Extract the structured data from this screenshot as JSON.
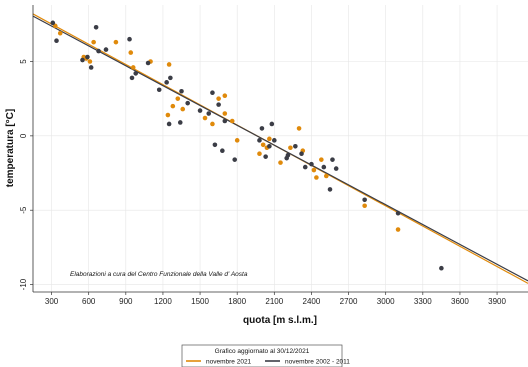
{
  "chart_data": {
    "type": "scatter",
    "xlabel": "quota [m s.l.m.]",
    "ylabel": "temperatura [°C]",
    "xlim": [
      150,
      4150
    ],
    "ylim": [
      -10.5,
      8.8
    ],
    "x_ticks": [
      300,
      600,
      900,
      1200,
      1500,
      1800,
      2100,
      2400,
      2700,
      3000,
      3300,
      3600,
      3900
    ],
    "y_ticks": [
      -10,
      -5,
      0,
      5
    ],
    "grid": true,
    "annotation": "Elaborazioni a cura del Centro Funzionale della Valle d' Aosta",
    "legend": {
      "title": "Grafico aggiornato al 30/12/2021",
      "placement": "bottom-center"
    },
    "series": [
      {
        "name": "novembre 2021",
        "color": "#e08a0b",
        "points": [
          [
            330,
            7.4
          ],
          [
            370,
            6.9
          ],
          [
            560,
            5.3
          ],
          [
            580,
            5.2
          ],
          [
            610,
            5.0
          ],
          [
            640,
            6.3
          ],
          [
            820,
            6.3
          ],
          [
            940,
            5.6
          ],
          [
            960,
            4.6
          ],
          [
            1100,
            5.0
          ],
          [
            1250,
            4.8
          ],
          [
            1240,
            1.4
          ],
          [
            1280,
            2.0
          ],
          [
            1320,
            2.5
          ],
          [
            1360,
            1.8
          ],
          [
            1540,
            1.2
          ],
          [
            1600,
            0.8
          ],
          [
            1650,
            2.5
          ],
          [
            1700,
            2.7
          ],
          [
            1700,
            1.5
          ],
          [
            1760,
            1.0
          ],
          [
            1800,
            -0.3
          ],
          [
            1980,
            -1.2
          ],
          [
            2010,
            -0.6
          ],
          [
            2040,
            -0.8
          ],
          [
            2060,
            -0.2
          ],
          [
            2150,
            -1.8
          ],
          [
            2230,
            -0.8
          ],
          [
            2300,
            0.5
          ],
          [
            2330,
            -1.0
          ],
          [
            2420,
            -2.3
          ],
          [
            2440,
            -2.8
          ],
          [
            2480,
            -1.6
          ],
          [
            2520,
            -2.7
          ],
          [
            2830,
            -4.7
          ],
          [
            3100,
            -6.3
          ]
        ]
      },
      {
        "name": "novembre 2002 - 2011",
        "color": "#3b3d46",
        "points": [
          [
            310,
            7.6
          ],
          [
            340,
            6.4
          ],
          [
            550,
            5.1
          ],
          [
            590,
            5.3
          ],
          [
            620,
            4.6
          ],
          [
            660,
            7.3
          ],
          [
            680,
            5.7
          ],
          [
            740,
            5.8
          ],
          [
            930,
            6.5
          ],
          [
            950,
            3.9
          ],
          [
            980,
            4.2
          ],
          [
            1080,
            4.9
          ],
          [
            1170,
            3.1
          ],
          [
            1230,
            3.6
          ],
          [
            1250,
            0.8
          ],
          [
            1260,
            3.9
          ],
          [
            1340,
            0.9
          ],
          [
            1350,
            3.0
          ],
          [
            1400,
            2.2
          ],
          [
            1500,
            1.7
          ],
          [
            1570,
            1.5
          ],
          [
            1600,
            2.9
          ],
          [
            1620,
            -0.6
          ],
          [
            1650,
            2.1
          ],
          [
            1680,
            -1.0
          ],
          [
            1700,
            1.0
          ],
          [
            1780,
            -1.6
          ],
          [
            1980,
            -0.3
          ],
          [
            2000,
            0.5
          ],
          [
            2030,
            -1.4
          ],
          [
            2060,
            -0.7
          ],
          [
            2080,
            0.8
          ],
          [
            2100,
            -0.3
          ],
          [
            2200,
            -1.5
          ],
          [
            2210,
            -1.3
          ],
          [
            2270,
            -0.7
          ],
          [
            2320,
            -1.2
          ],
          [
            2350,
            -2.1
          ],
          [
            2400,
            -1.9
          ],
          [
            2500,
            -2.1
          ],
          [
            2550,
            -3.6
          ],
          [
            2570,
            -1.6
          ],
          [
            2600,
            -2.2
          ],
          [
            2830,
            -4.3
          ],
          [
            3100,
            -5.2
          ],
          [
            3450,
            -8.9
          ]
        ]
      }
    ],
    "regression_lines": [
      {
        "name": "novembre 2021",
        "color": "#e08a0b",
        "x": [
          150,
          4150
        ],
        "y": [
          8.2,
          -9.92
        ]
      },
      {
        "name": "novembre 2002 - 2011",
        "color": "#3b3d46",
        "x": [
          150,
          4150
        ],
        "y": [
          8.05,
          -9.75
        ]
      }
    ]
  }
}
